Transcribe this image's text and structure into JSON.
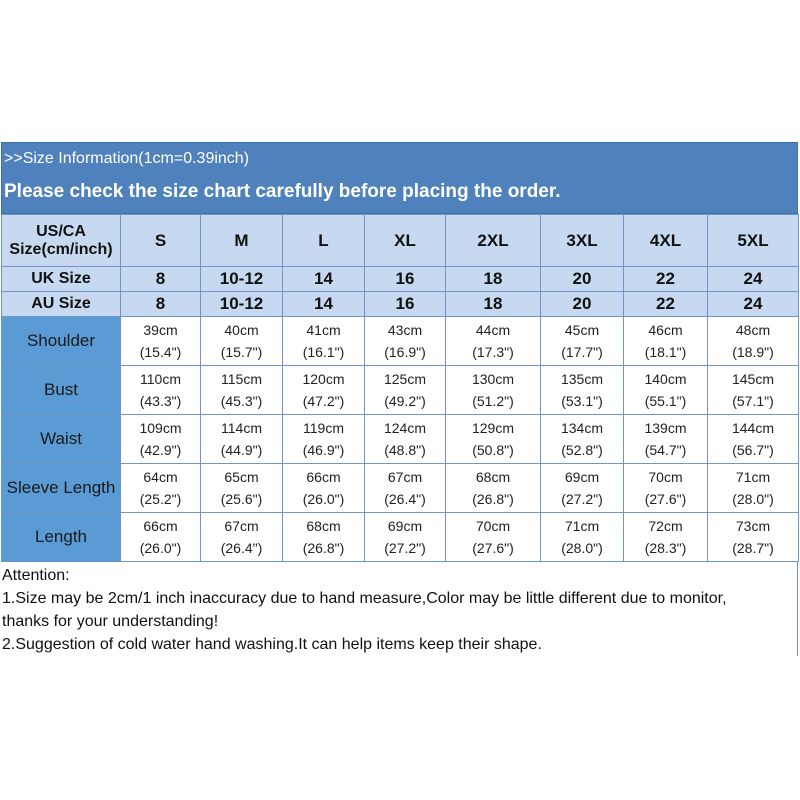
{
  "title": ">>Size Information(1cm=0.39inch)",
  "subtitle": "Please check the size chart carefully before placing the order.",
  "header": {
    "us_label": "US/CA",
    "us_label_2": "Size(cm/inch)",
    "sizes": [
      "S",
      "M",
      "L",
      "XL",
      "2XL",
      "3XL",
      "4XL",
      "5XL"
    ],
    "uk_label": "UK Size",
    "uk": [
      "8",
      "10-12",
      "14",
      "16",
      "18",
      "20",
      "22",
      "24"
    ],
    "au_label": "AU Size",
    "au": [
      "8",
      "10-12",
      "14",
      "16",
      "18",
      "20",
      "22",
      "24"
    ]
  },
  "rows": [
    {
      "label": "Shoulder",
      "cm": [
        "39cm",
        "40cm",
        "41cm",
        "43cm",
        "44cm",
        "45cm",
        "46cm",
        "48cm"
      ],
      "inch": [
        "(15.4\")",
        "(15.7\")",
        "(16.1\")",
        "(16.9\")",
        "(17.3\")",
        "(17.7\")",
        "(18.1\")",
        "(18.9\")"
      ]
    },
    {
      "label": "Bust",
      "cm": [
        "110cm",
        "115cm",
        "120cm",
        "125cm",
        "130cm",
        "135cm",
        "140cm",
        "145cm"
      ],
      "inch": [
        "(43.3\")",
        "(45.3\")",
        "(47.2\")",
        "(49.2\")",
        "(51.2\")",
        "(53.1\")",
        "(55.1\")",
        "(57.1\")"
      ]
    },
    {
      "label": "Waist",
      "cm": [
        "109cm",
        "114cm",
        "119cm",
        "124cm",
        "129cm",
        "134cm",
        "139cm",
        "144cm"
      ],
      "inch": [
        "(42.9\")",
        "(44.9\")",
        "(46.9\")",
        "(48.8\")",
        "(50.8\")",
        "(52.8\")",
        "(54.7\")",
        "(56.7\")"
      ]
    },
    {
      "label": "Sleeve Length",
      "cm": [
        "64cm",
        "65cm",
        "66cm",
        "67cm",
        "68cm",
        "69cm",
        "70cm",
        "71cm"
      ],
      "inch": [
        "(25.2\")",
        "(25.6\")",
        "(26.0\")",
        "(26.4\")",
        "(26.8\")",
        "(27.2\")",
        "(27.6\")",
        "(28.0\")"
      ]
    },
    {
      "label": "Length",
      "cm": [
        "66cm",
        "67cm",
        "68cm",
        "69cm",
        "70cm",
        "71cm",
        "72cm",
        "73cm"
      ],
      "inch": [
        "(26.0\")",
        "(26.4\")",
        "(26.8\")",
        "(27.2\")",
        "(27.6\")",
        "(28.0\")",
        "(28.3\")",
        "(28.7\")"
      ]
    }
  ],
  "notes": {
    "heading": "Attention:",
    "line1": "1.Size may be 2cm/1 inch inaccuracy due to hand measure,Color may be little different due to monitor,",
    "line1b": "thanks for your understanding!",
    "line2": "2.Suggestion of cold water hand washing.It can help items keep their shape."
  },
  "colors": {
    "title_bar": "#4f81bd",
    "header_bg": "#c6d9f0",
    "label_bg": "#5b9bd5"
  }
}
